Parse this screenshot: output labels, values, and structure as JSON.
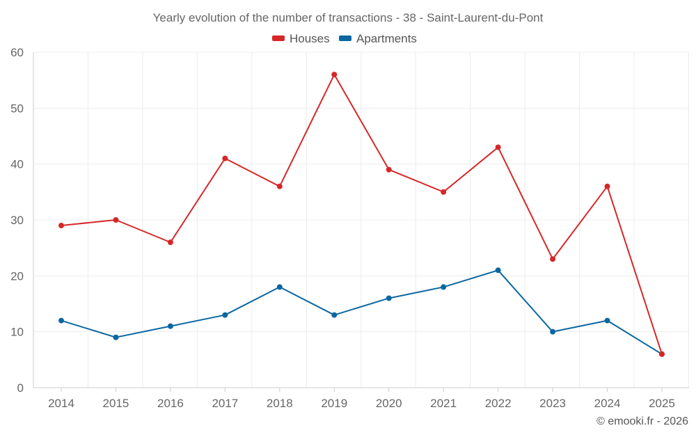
{
  "chart_data": {
    "type": "line",
    "title": "Yearly evolution of the number of transactions - 38 - Saint-Laurent-du-Pont",
    "xlabel": "",
    "ylabel": "",
    "categories": [
      "2014",
      "2015",
      "2016",
      "2017",
      "2018",
      "2019",
      "2020",
      "2021",
      "2022",
      "2023",
      "2024",
      "2025"
    ],
    "ylim": [
      0,
      60
    ],
    "yticks": [
      0,
      10,
      20,
      30,
      40,
      50,
      60
    ],
    "grid": true,
    "legend_position": "top-center",
    "series": [
      {
        "name": "Houses",
        "color": "#d62728",
        "values": [
          29,
          30,
          26,
          41,
          36,
          56,
          39,
          35,
          43,
          23,
          36,
          6
        ]
      },
      {
        "name": "Apartments",
        "color": "#0a67a0",
        "values": [
          12,
          9,
          11,
          13,
          18,
          13,
          16,
          18,
          21,
          10,
          12,
          6
        ]
      }
    ]
  },
  "credit": "© emooki.fr - 2026"
}
